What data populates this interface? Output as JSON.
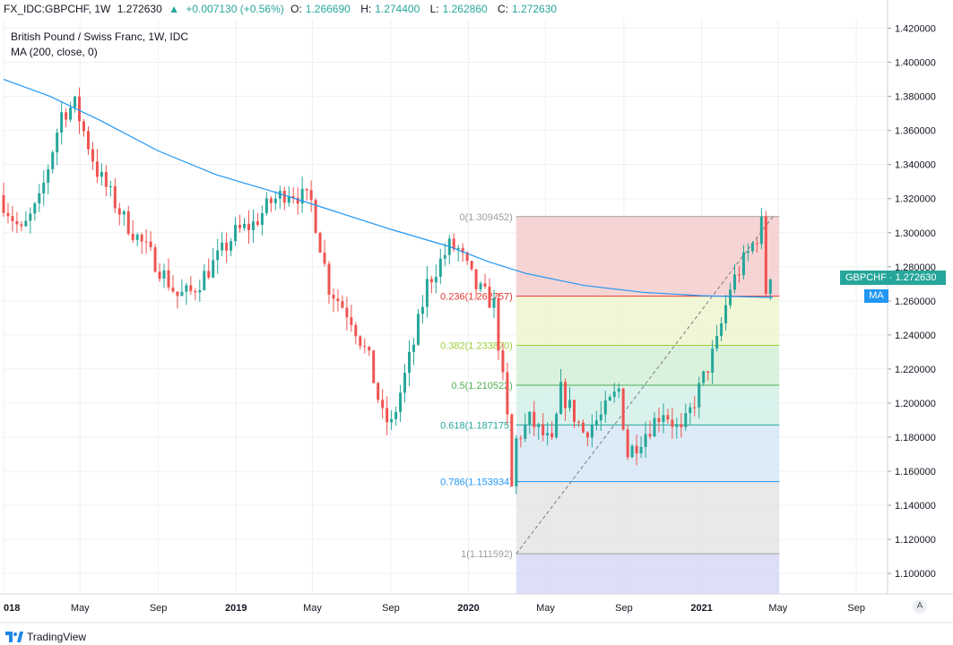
{
  "header": {
    "symbol": "FX_IDC:GBPCHF, 1W",
    "last": "1.272630",
    "change": "+0.007130 (+0.56%)",
    "o_label": "O:",
    "o": "1.266690",
    "h_label": "H:",
    "h": "1.274400",
    "l_label": "L:",
    "l": "1.262860",
    "c_label": "C:",
    "c": "1.272630"
  },
  "legend": {
    "title": "British Pound / Swiss Franc, 1W, IDC",
    "indicator": "MA (200, close, 0)"
  },
  "badges": {
    "price": "GBPCHF · 1.272630",
    "ma": "MA",
    "auto": "A"
  },
  "branding": {
    "logo_text": "TradingView"
  },
  "colors": {
    "up": "#26a69a",
    "down": "#ef5350",
    "ma": "#2196f3",
    "fib_bands": [
      "#f4cccc",
      "#eef5cf",
      "#d3f0d6",
      "#d3f0e9",
      "#d6e8f5",
      "#e5e5e5",
      "#d7d9f7"
    ],
    "fib_lines": [
      "#9e9e9e",
      "#e53935",
      "#9ccc3a",
      "#4caf50",
      "#26a69a",
      "#2196f3",
      "#9e9e9e"
    ]
  },
  "chart_data": {
    "type": "candlestick",
    "symbol": "GBPCHF",
    "timeframe": "1W",
    "y_axis": {
      "range": [
        1.088,
        1.425
      ],
      "ticks": [
        "1.100000",
        "1.120000",
        "1.140000",
        "1.160000",
        "1.180000",
        "1.200000",
        "1.220000",
        "1.240000",
        "1.260000",
        "1.280000",
        "1.300000",
        "1.320000",
        "1.340000",
        "1.360000",
        "1.380000",
        "1.400000",
        "1.420000"
      ]
    },
    "x_axis": {
      "ticks": [
        "018",
        "May",
        "Sep",
        "2019",
        "May",
        "Sep",
        "2020",
        "May",
        "Sep",
        "2021",
        "May",
        "Sep"
      ],
      "range": [
        "2018-01-01",
        "2021-10-20"
      ]
    },
    "ma_200": [
      [
        "2018-01-01",
        1.39
      ],
      [
        "2018-03-15",
        1.38
      ],
      [
        "2018-06-01",
        1.366
      ],
      [
        "2018-09-01",
        1.348
      ],
      [
        "2018-12-01",
        1.334
      ],
      [
        "2019-03-01",
        1.324
      ],
      [
        "2019-06-01",
        1.313
      ],
      [
        "2019-09-01",
        1.302
      ],
      [
        "2019-12-01",
        1.292
      ],
      [
        "2020-02-01",
        1.283
      ],
      [
        "2020-04-01",
        1.276
      ],
      [
        "2020-07-01",
        1.269
      ],
      [
        "2020-10-01",
        1.265
      ],
      [
        "2021-01-01",
        1.263
      ],
      [
        "2021-04-23",
        1.262
      ]
    ],
    "fibonacci": {
      "start": [
        "2020-03-16",
        1.111592
      ],
      "end": [
        "2021-04-23",
        1.309452
      ],
      "right_edge": "2021-05-03",
      "levels": [
        {
          "ratio": "0",
          "price": 1.309452,
          "label": "0(1.309452)"
        },
        {
          "ratio": "0.236",
          "price": 1.262757,
          "label": "0.236(1.262757)"
        },
        {
          "ratio": "0.382",
          "price": 1.23387,
          "label": "0.382(1.233870)"
        },
        {
          "ratio": "0.5",
          "price": 1.210522,
          "label": "0.5(1.210522)"
        },
        {
          "ratio": "0.618",
          "price": 1.187175,
          "label": "0.618(1.187175)"
        },
        {
          "ratio": "0.786",
          "price": 1.153934,
          "label": "0.786(1.153934)"
        },
        {
          "ratio": "1",
          "price": 1.111592,
          "label": "1(1.111592)"
        }
      ]
    },
    "ohlc_path": [
      [
        "2018-01-01",
        1.322
      ],
      [
        "2018-02-05",
        1.3
      ],
      [
        "2018-03-05",
        1.318
      ],
      [
        "2018-04-09",
        1.37
      ],
      [
        "2018-04-30",
        1.375
      ],
      [
        "2018-06-04",
        1.336
      ],
      [
        "2018-07-16",
        1.308
      ],
      [
        "2018-09-03",
        1.283
      ],
      [
        "2018-10-08",
        1.263
      ],
      [
        "2018-10-29",
        1.265
      ],
      [
        "2018-12-10",
        1.285
      ],
      [
        "2019-01-07",
        1.3
      ],
      [
        "2019-02-04",
        1.305
      ],
      [
        "2019-03-04",
        1.318
      ],
      [
        "2019-04-01",
        1.325
      ],
      [
        "2019-05-06",
        1.318
      ],
      [
        "2019-06-03",
        1.268
      ],
      [
        "2019-07-08",
        1.25
      ],
      [
        "2019-08-05",
        1.225
      ],
      [
        "2019-08-26",
        1.192
      ],
      [
        "2019-09-09",
        1.187
      ],
      [
        "2019-10-14",
        1.235
      ],
      [
        "2019-11-04",
        1.27
      ],
      [
        "2019-12-09",
        1.292
      ],
      [
        "2019-12-23",
        1.29
      ],
      [
        "2020-01-20",
        1.268
      ],
      [
        "2020-02-17",
        1.258
      ],
      [
        "2020-03-09",
        1.19
      ],
      [
        "2020-03-16",
        1.15
      ],
      [
        "2020-03-23",
        1.178
      ],
      [
        "2020-04-13",
        1.19
      ],
      [
        "2020-05-18",
        1.175
      ],
      [
        "2020-06-01",
        1.207
      ],
      [
        "2020-07-06",
        1.183
      ],
      [
        "2020-08-03",
        1.192
      ],
      [
        "2020-08-31",
        1.208
      ],
      [
        "2020-09-14",
        1.17
      ],
      [
        "2020-10-12",
        1.183
      ],
      [
        "2020-11-09",
        1.196
      ],
      [
        "2020-12-07",
        1.182
      ],
      [
        "2021-01-04",
        1.208
      ],
      [
        "2021-02-01",
        1.235
      ],
      [
        "2021-02-22",
        1.268
      ],
      [
        "2021-03-22",
        1.288
      ],
      [
        "2021-04-05",
        1.298
      ],
      [
        "2021-04-12",
        1.305
      ],
      [
        "2021-04-19",
        1.266
      ],
      [
        "2021-04-23",
        1.27263
      ]
    ]
  }
}
